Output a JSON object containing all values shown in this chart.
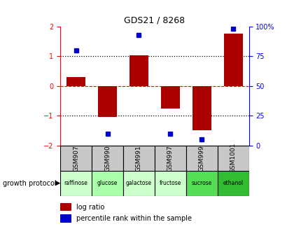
{
  "title": "GDS21 / 8268",
  "samples": [
    "GSM907",
    "GSM990",
    "GSM991",
    "GSM997",
    "GSM999",
    "GSM1001"
  ],
  "protocols": [
    "raffinose",
    "glucose",
    "galactose",
    "fructose",
    "sucrose",
    "ethanol"
  ],
  "protocol_colors": [
    "#ccffcc",
    "#aaffaa",
    "#ccffcc",
    "#ccffcc",
    "#55dd55",
    "#33bb33"
  ],
  "log_ratios": [
    0.3,
    -1.05,
    1.02,
    -0.75,
    -1.5,
    1.75
  ],
  "percentile_ranks": [
    80,
    10,
    93,
    10,
    5,
    98
  ],
  "bar_color": "#aa0000",
  "dot_color": "#0000cc",
  "ylim_left": [
    -2,
    2
  ],
  "ylim_right": [
    0,
    100
  ],
  "yticks_left": [
    -2,
    -1,
    0,
    1,
    2
  ],
  "yticks_right": [
    0,
    25,
    50,
    75,
    100
  ],
  "hlines_dotted": [
    -1,
    1
  ],
  "hline_dashed": 0,
  "legend_log_ratio": "log ratio",
  "legend_percentile": "percentile rank within the sample",
  "xlabel_growth": "growth protocol",
  "bar_width": 0.6
}
